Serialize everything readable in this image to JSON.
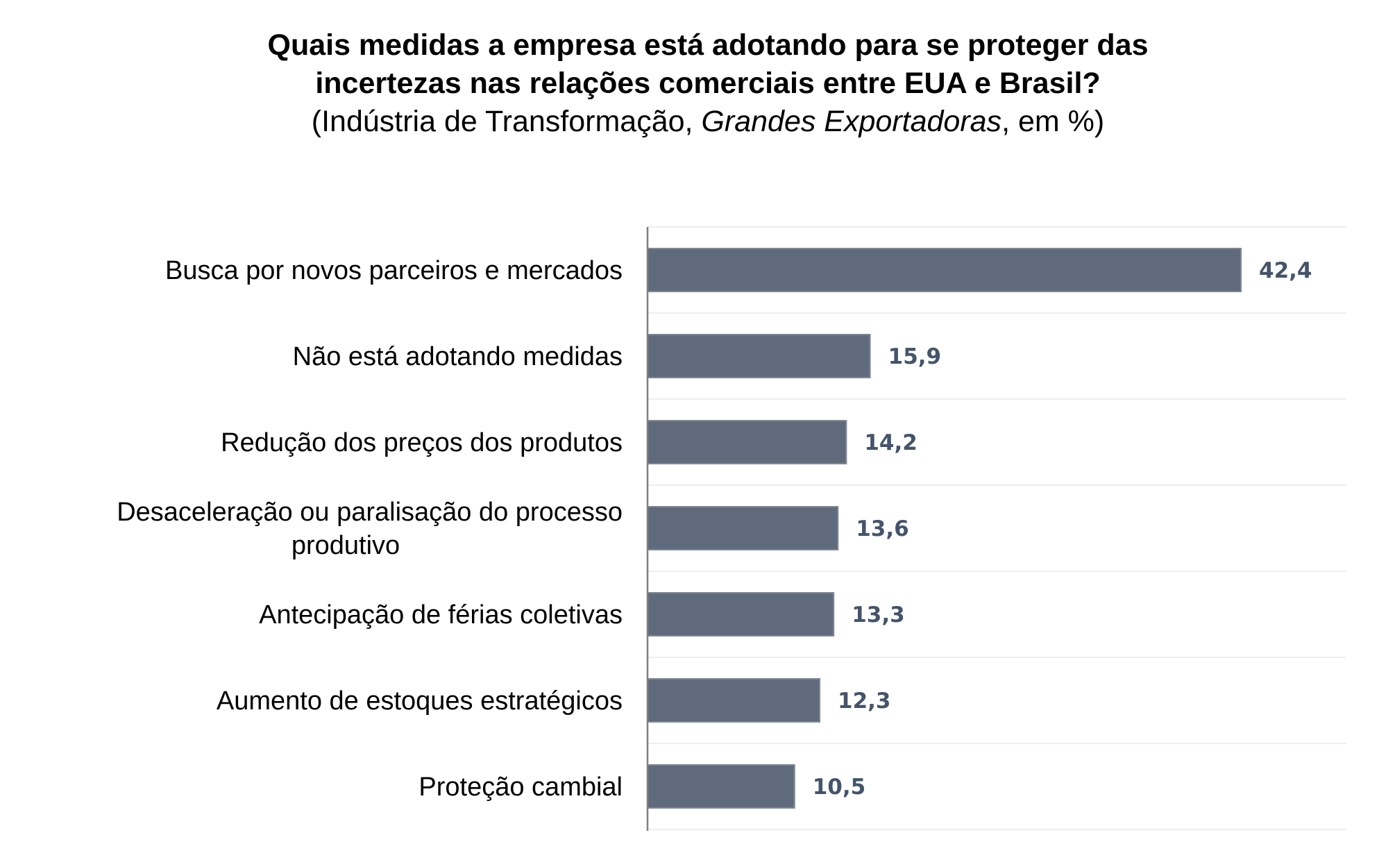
{
  "chart_data": {
    "type": "bar",
    "orientation": "horizontal",
    "title": "Quais medidas a empresa está adotando para se proteger das incertezas nas relações comerciais entre EUA e Brasil?",
    "title_lines": [
      "Quais medidas a empresa está adotando para se proteger das",
      "incertezas nas relações comerciais entre EUA e Brasil?"
    ],
    "subtitle": {
      "prefix": "(Indústria de Transformação, ",
      "italic": "Grandes Exportadoras",
      "suffix": ", em %)"
    },
    "categories": [
      "Busca por novos parceiros e mercados",
      "Não está adotando medidas",
      "Redução dos preços dos produtos",
      "Desaceleração ou paralisação do processo produtivo",
      "Antecipação de férias coletivas",
      "Aumento de estoques estratégicos",
      "Proteção cambial"
    ],
    "category_label_lines": [
      [
        "Busca por novos parceiros e mercados"
      ],
      [
        "Não está adotando medidas"
      ],
      [
        "Redução dos preços dos produtos"
      ],
      [
        "Desaceleração ou paralisação do processo",
        "produtivo"
      ],
      [
        "Antecipação de férias coletivas"
      ],
      [
        "Aumento de estoques estratégicos"
      ],
      [
        "Proteção cambial"
      ]
    ],
    "values": [
      42.4,
      15.9,
      14.2,
      13.6,
      13.3,
      12.3,
      10.5
    ],
    "value_labels": [
      "42,4",
      "15,9",
      "14,2",
      "13,6",
      "13,3",
      "12,3",
      "10,5"
    ],
    "xlim": [
      0,
      50
    ],
    "xlabel": "",
    "ylabel": "",
    "grid": "horizontal separators only",
    "legend": "none",
    "colors": {
      "bar_fill": "#5f6b7d",
      "bar_stroke": "#7f8794",
      "value_label": "#44546a",
      "axis": "#7f7f7f",
      "gridline": "#eeeeee"
    }
  }
}
